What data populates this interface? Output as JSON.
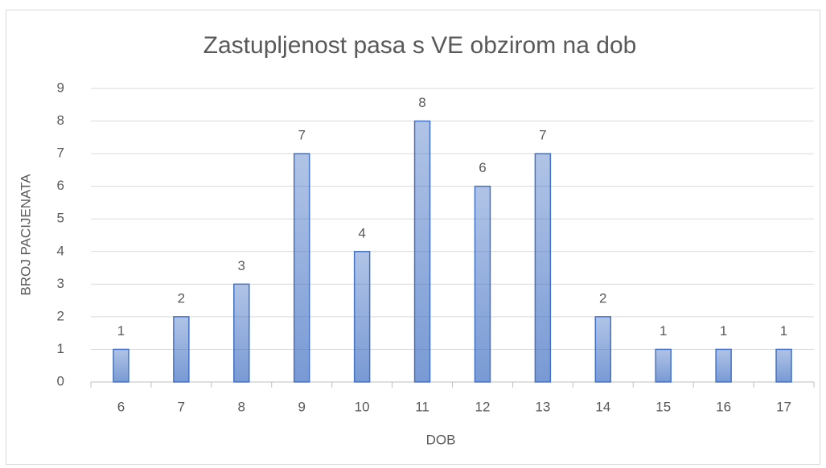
{
  "chart_data": {
    "type": "bar",
    "title": "Zastupljenost pasa s VE obzirom na dob",
    "x_label": "DOB",
    "y_label": "BROJ PACIJENATA",
    "categories": [
      "6",
      "7",
      "8",
      "9",
      "10",
      "11",
      "12",
      "13",
      "14",
      "15",
      "16",
      "17"
    ],
    "values": [
      1,
      2,
      3,
      7,
      4,
      8,
      6,
      7,
      2,
      1,
      1,
      1
    ],
    "color": "#4472c4",
    "ylim": [
      0,
      9
    ],
    "yticks": [
      0,
      1,
      2,
      3,
      4,
      5,
      6,
      7,
      8,
      9
    ],
    "grid": true
  }
}
